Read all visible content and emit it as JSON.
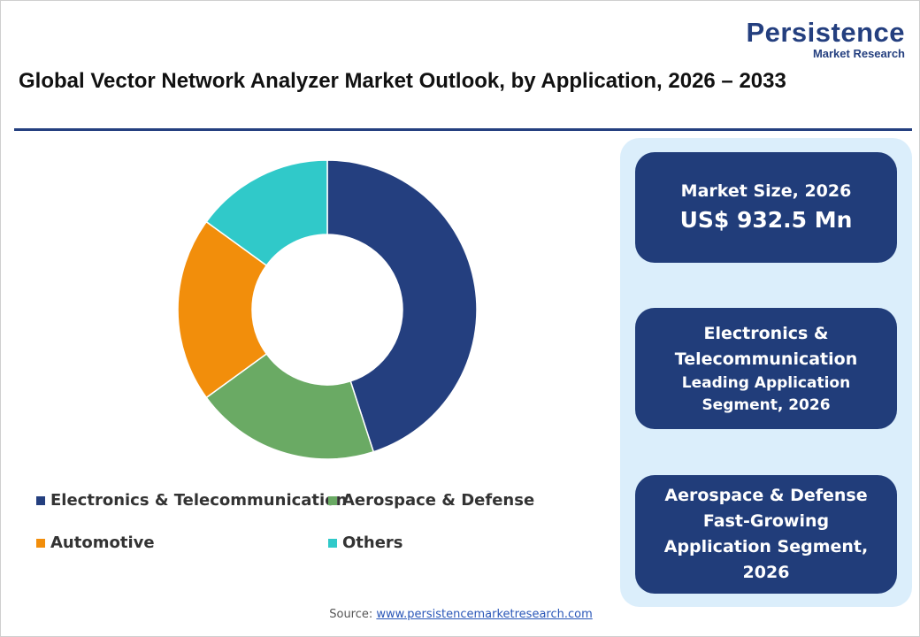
{
  "logo": {
    "name": "Persistence",
    "tagline": "Market Research"
  },
  "chart_data": {
    "type": "donut",
    "title": "Global Vector Network Analyzer Market Outlook, by Application, 2026 – 2033",
    "categories": [
      "Electronics & Telecommunication",
      "Aerospace & Defense",
      "Automotive",
      "Others"
    ],
    "values": [
      45,
      20,
      20,
      15
    ],
    "colors": [
      "#243f7f",
      "#6aaa64",
      "#f28e0b",
      "#30c9c9"
    ]
  },
  "highlights": [
    {
      "heading": "Market Size, 2026",
      "text": "US$ 932.5 Mn"
    },
    {
      "heading": "Electronics & Telecommunication",
      "text": "Leading Application Segment, 2026"
    },
    {
      "heading": "Aerospace & Defense",
      "text": "Fast-Growing Application Segment, 2026"
    }
  ],
  "source": {
    "label": "Source:",
    "link": "www.persistencemarketresearch.com"
  }
}
